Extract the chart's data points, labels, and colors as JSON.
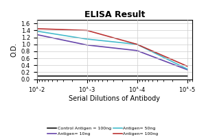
{
  "title": "ELISA Result",
  "ylabel": "O.D.",
  "xlabel": "Serial Dilutions of Antibody",
  "x_ticks": [
    0.01,
    0.001,
    0.0001,
    1e-05
  ],
  "x_tick_labels": [
    "10^-2",
    "10^-3",
    "10^-4",
    "10^-5"
  ],
  "xlim": [
    1e-05,
    0.01
  ],
  "ylim": [
    0,
    1.7
  ],
  "yticks": [
    0,
    0.2,
    0.4,
    0.6,
    0.8,
    1.0,
    1.2,
    1.4,
    1.6
  ],
  "lines": [
    {
      "label": "Control Antigen = 100ng",
      "color": "#111111",
      "x": [
        0.01,
        0.001,
        0.0001,
        1e-05
      ],
      "y": [
        0.08,
        0.08,
        0.08,
        0.08
      ]
    },
    {
      "label": "Antigen= 10ng",
      "color": "#6644aa",
      "x": [
        0.01,
        0.001,
        0.0001,
        1e-05
      ],
      "y": [
        1.28,
        0.98,
        0.82,
        0.27
      ]
    },
    {
      "label": "Antigen= 50ng",
      "color": "#44bbcc",
      "x": [
        0.01,
        0.001,
        0.0001,
        1e-05
      ],
      "y": [
        1.38,
        1.15,
        1.0,
        0.29
      ]
    },
    {
      "label": "Antigen= 100ng",
      "color": "#bb3333",
      "x": [
        0.01,
        0.001,
        0.0001,
        1e-05
      ],
      "y": [
        1.45,
        1.4,
        1.0,
        0.37
      ]
    }
  ],
  "legend_ncol": 2,
  "background_color": "#ffffff",
  "grid_color": "#cccccc"
}
